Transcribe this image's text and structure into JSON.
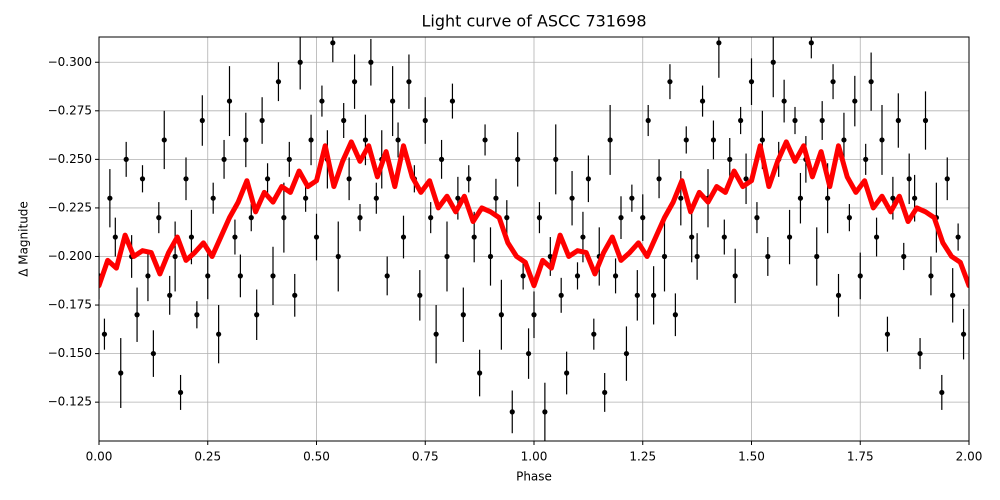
{
  "chart_data": {
    "type": "scatter",
    "title": "Light curve of ASCC 731698",
    "xlabel": "Phase",
    "ylabel": "Δ Magnitude",
    "xlim": [
      0,
      2
    ],
    "ylim": [
      -0.105,
      -0.313
    ],
    "grid": true,
    "xticks": [
      {
        "value": 0,
        "label": "0.00"
      },
      {
        "value": 0.25,
        "label": "0.25"
      },
      {
        "value": 0.5,
        "label": "0.50"
      },
      {
        "value": 0.75,
        "label": "0.75"
      },
      {
        "value": 1,
        "label": "1.00"
      },
      {
        "value": 1.25,
        "label": "1.25"
      },
      {
        "value": 1.5,
        "label": "1.50"
      },
      {
        "value": 1.75,
        "label": "1.75"
      },
      {
        "value": 2,
        "label": "2.00"
      }
    ],
    "yticks": [
      {
        "value": -0.3,
        "label": "−0.300"
      },
      {
        "value": -0.275,
        "label": "−0.275"
      },
      {
        "value": -0.25,
        "label": "−0.250"
      },
      {
        "value": -0.225,
        "label": "−0.225"
      },
      {
        "value": -0.2,
        "label": "−0.200"
      },
      {
        "value": -0.175,
        "label": "−0.175"
      },
      {
        "value": -0.15,
        "label": "−0.150"
      },
      {
        "value": -0.125,
        "label": "−0.125"
      }
    ],
    "series": [
      {
        "type": "errorbar",
        "color": "#000000",
        "x": [
          0,
          0.0125,
          0.025,
          0.0375,
          0.05,
          0.0625,
          0.075,
          0.0875,
          0.1,
          0.1125,
          0.125,
          0.1375,
          0.15,
          0.1625,
          0.175,
          0.1875,
          0.2,
          0.2125,
          0.225,
          0.2375,
          0.25,
          0.2625,
          0.275,
          0.2875,
          0.3,
          0.3125,
          0.325,
          0.3375,
          0.35,
          0.3625,
          0.375,
          0.3875,
          0.4,
          0.4125,
          0.425,
          0.4375,
          0.45,
          0.4625,
          0.475,
          0.4875,
          0.5,
          0.5125,
          0.525,
          0.5375,
          0.55,
          0.5625,
          0.575,
          0.5875,
          0.6,
          0.6125,
          0.625,
          0.6375,
          0.65,
          0.6625,
          0.675,
          0.6875,
          0.7,
          0.7125,
          0.725,
          0.7375,
          0.75,
          0.7625,
          0.775,
          0.7875,
          0.8,
          0.8125,
          0.825,
          0.8375,
          0.85,
          0.8625,
          0.875,
          0.8875,
          0.9,
          0.9125,
          0.925,
          0.9375,
          0.95,
          0.9625,
          0.975,
          0.9875,
          1,
          1.0125,
          1.025,
          1.0375,
          1.05,
          1.0625,
          1.075,
          1.0875,
          1.1,
          1.1125,
          1.125,
          1.1375,
          1.15,
          1.1625,
          1.175,
          1.1875,
          1.2,
          1.2125,
          1.225,
          1.2375,
          1.25,
          1.2625,
          1.275,
          1.2875,
          1.3,
          1.3125,
          1.325,
          1.3375,
          1.35,
          1.3625,
          1.375,
          1.3875,
          1.4,
          1.4125,
          1.425,
          1.4375,
          1.45,
          1.4625,
          1.475,
          1.4875,
          1.5,
          1.5125,
          1.525,
          1.5375,
          1.55,
          1.5625,
          1.575,
          1.5875,
          1.6,
          1.6125,
          1.625,
          1.6375,
          1.65,
          1.6625,
          1.675,
          1.6875,
          1.7,
          1.7125,
          1.725,
          1.7375,
          1.75,
          1.7625,
          1.775,
          1.7875,
          1.8,
          1.8125,
          1.825,
          1.8375,
          1.85,
          1.8625,
          1.875,
          1.8875,
          1.9,
          1.9125,
          1.925,
          1.9375,
          1.95,
          1.9625,
          1.975,
          1.9875
        ],
        "values": [
          -0.19,
          -0.16,
          -0.23,
          -0.21,
          -0.14,
          -0.25,
          -0.2,
          -0.17,
          -0.24,
          -0.19,
          -0.15,
          -0.22,
          -0.26,
          -0.18,
          -0.2,
          -0.13,
          -0.24,
          -0.21,
          -0.17,
          -0.27,
          -0.19,
          -0.23,
          -0.16,
          -0.25,
          -0.28,
          -0.21,
          -0.19,
          -0.26,
          -0.22,
          -0.17,
          -0.27,
          -0.24,
          -0.19,
          -0.29,
          -0.22,
          -0.25,
          -0.18,
          -0.3,
          -0.23,
          -0.26,
          -0.21,
          -0.28,
          -0.25,
          -0.31,
          -0.2,
          -0.27,
          -0.24,
          -0.29,
          -0.22,
          -0.26,
          -0.3,
          -0.23,
          -0.25,
          -0.19,
          -0.28,
          -0.26,
          -0.21,
          -0.29,
          -0.24,
          -0.18,
          -0.27,
          -0.22,
          -0.16,
          -0.25,
          -0.2,
          -0.28,
          -0.23,
          -0.17,
          -0.24,
          -0.21,
          -0.14,
          -0.26,
          -0.2,
          -0.23,
          -0.17,
          -0.22,
          -0.12,
          -0.25,
          -0.19,
          -0.15,
          -0.17,
          -0.22,
          -0.12,
          -0.2,
          -0.25,
          -0.18,
          -0.14,
          -0.23,
          -0.19,
          -0.21,
          -0.24,
          -0.16,
          -0.2,
          -0.13,
          -0.26,
          -0.19,
          -0.22,
          -0.15,
          -0.23,
          -0.18,
          -0.22,
          -0.27,
          -0.18,
          -0.24,
          -0.2,
          -0.29,
          -0.17,
          -0.23,
          -0.26,
          -0.21,
          -0.2,
          -0.28,
          -0.23,
          -0.26,
          -0.31,
          -0.21,
          -0.25,
          -0.19,
          -0.27,
          -0.24,
          -0.29,
          -0.22,
          -0.26,
          -0.2,
          -0.3,
          -0.25,
          -0.28,
          -0.21,
          -0.27,
          -0.23,
          -0.25,
          -0.31,
          -0.2,
          -0.27,
          -0.23,
          -0.29,
          -0.18,
          -0.26,
          -0.22,
          -0.28,
          -0.19,
          -0.25,
          -0.29,
          -0.21,
          -0.26,
          -0.16,
          -0.23,
          -0.27,
          -0.2,
          -0.24,
          -0.23,
          -0.15,
          -0.27,
          -0.19,
          -0.22,
          -0.13,
          -0.24,
          -0.18,
          -0.21,
          -0.16
        ],
        "errors": [
          0.012,
          0.008,
          0.015,
          0.01,
          0.018,
          0.009,
          0.011,
          0.014,
          0.007,
          0.013,
          0.012,
          0.008,
          0.015,
          0.01,
          0.018,
          0.009,
          0.011,
          0.014,
          0.007,
          0.013,
          0.012,
          0.008,
          0.015,
          0.01,
          0.018,
          0.009,
          0.011,
          0.014,
          0.007,
          0.013,
          0.012,
          0.008,
          0.015,
          0.01,
          0.018,
          0.009,
          0.011,
          0.014,
          0.007,
          0.013,
          0.012,
          0.008,
          0.015,
          0.01,
          0.018,
          0.009,
          0.011,
          0.014,
          0.007,
          0.013,
          0.012,
          0.008,
          0.015,
          0.01,
          0.018,
          0.009,
          0.011,
          0.014,
          0.007,
          0.013,
          0.012,
          0.008,
          0.015,
          0.01,
          0.018,
          0.009,
          0.011,
          0.014,
          0.007,
          0.013,
          0.012,
          0.008,
          0.015,
          0.01,
          0.018,
          0.009,
          0.011,
          0.014,
          0.007,
          0.013,
          0.012,
          0.008,
          0.015,
          0.01,
          0.018,
          0.009,
          0.011,
          0.014,
          0.007,
          0.013,
          0.012,
          0.008,
          0.015,
          0.01,
          0.018,
          0.009,
          0.011,
          0.014,
          0.007,
          0.013,
          0.012,
          0.008,
          0.015,
          0.01,
          0.018,
          0.009,
          0.011,
          0.014,
          0.007,
          0.013,
          0.012,
          0.008,
          0.015,
          0.01,
          0.018,
          0.009,
          0.011,
          0.014,
          0.007,
          0.013,
          0.012,
          0.008,
          0.015,
          0.01,
          0.018,
          0.009,
          0.011,
          0.014,
          0.007,
          0.013,
          0.012,
          0.008,
          0.015,
          0.01,
          0.018,
          0.009,
          0.011,
          0.014,
          0.007,
          0.013,
          0.012,
          0.008,
          0.015,
          0.01,
          0.018,
          0.009,
          0.011,
          0.014,
          0.007,
          0.013,
          0.012,
          0.008,
          0.015,
          0.01,
          0.018,
          0.009,
          0.011,
          0.014,
          0.007,
          0.013
        ]
      },
      {
        "type": "line",
        "color": "#ff0000",
        "x": [
          0,
          0.02,
          0.04,
          0.06,
          0.08,
          0.1,
          0.12,
          0.14,
          0.16,
          0.18,
          0.2,
          0.22,
          0.24,
          0.26,
          0.28,
          0.3,
          0.32,
          0.34,
          0.36,
          0.38,
          0.4,
          0.42,
          0.44,
          0.46,
          0.48,
          0.5,
          0.52,
          0.54,
          0.56,
          0.58,
          0.6,
          0.62,
          0.64,
          0.66,
          0.68,
          0.7,
          0.72,
          0.74,
          0.76,
          0.78,
          0.8,
          0.82,
          0.84,
          0.86,
          0.88,
          0.9,
          0.92,
          0.94,
          0.96,
          0.98,
          1,
          1.02,
          1.04,
          1.06,
          1.08,
          1.1,
          1.12,
          1.14,
          1.16,
          1.18,
          1.2,
          1.22,
          1.24,
          1.26,
          1.28,
          1.3,
          1.32,
          1.34,
          1.36,
          1.38,
          1.4,
          1.42,
          1.44,
          1.46,
          1.48,
          1.5,
          1.52,
          1.54,
          1.56,
          1.58,
          1.6,
          1.62,
          1.64,
          1.66,
          1.68,
          1.7,
          1.72,
          1.74,
          1.76,
          1.78,
          1.8,
          1.82,
          1.84,
          1.86,
          1.88,
          1.9,
          1.92,
          1.94,
          1.96,
          1.98,
          2
        ],
        "values": [
          -0.185,
          -0.198,
          -0.194,
          -0.211,
          -0.2,
          -0.203,
          -0.202,
          -0.191,
          -0.202,
          -0.21,
          -0.198,
          -0.202,
          -0.207,
          -0.2,
          -0.21,
          -0.22,
          -0.228,
          -0.239,
          -0.223,
          -0.233,
          -0.228,
          -0.236,
          -0.233,
          -0.244,
          -0.236,
          -0.239,
          -0.257,
          -0.236,
          -0.249,
          -0.259,
          -0.249,
          -0.257,
          -0.241,
          -0.254,
          -0.236,
          -0.257,
          -0.241,
          -0.233,
          -0.239,
          -0.225,
          -0.231,
          -0.223,
          -0.231,
          -0.218,
          -0.225,
          -0.223,
          -0.22,
          -0.207,
          -0.2,
          -0.197,
          -0.185,
          -0.198,
          -0.194,
          -0.211,
          -0.2,
          -0.203,
          -0.202,
          -0.191,
          -0.202,
          -0.21,
          -0.198,
          -0.202,
          -0.207,
          -0.2,
          -0.21,
          -0.22,
          -0.228,
          -0.239,
          -0.223,
          -0.233,
          -0.228,
          -0.236,
          -0.233,
          -0.244,
          -0.236,
          -0.239,
          -0.257,
          -0.236,
          -0.249,
          -0.259,
          -0.249,
          -0.257,
          -0.241,
          -0.254,
          -0.236,
          -0.257,
          -0.241,
          -0.233,
          -0.239,
          -0.225,
          -0.231,
          -0.223,
          -0.231,
          -0.218,
          -0.225,
          -0.223,
          -0.22,
          -0.207,
          -0.2,
          -0.197,
          -0.185
        ]
      }
    ]
  }
}
